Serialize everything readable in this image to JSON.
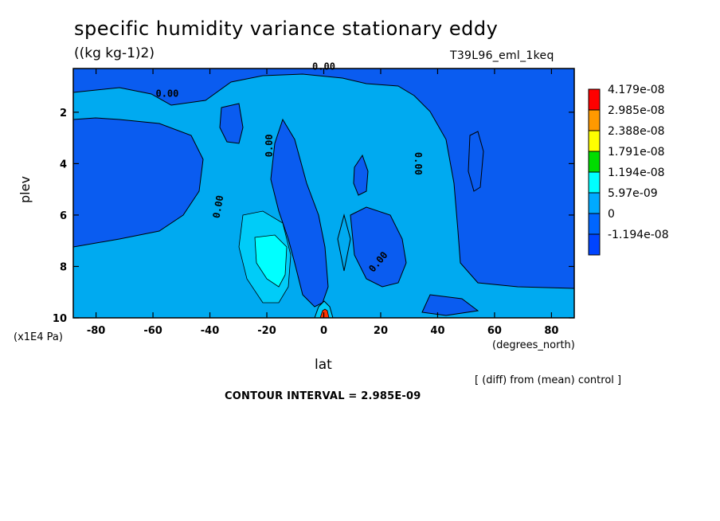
{
  "chart_data": {
    "type": "contour",
    "title": "specific humidity variance stationary eddy",
    "subtitle": "((kg kg-1)2)",
    "run_label": "T39L96_eml_1keq",
    "xlabel": "lat",
    "x_units": "(degrees_north)",
    "ylabel": "plev",
    "y_units": "(x1E4 Pa)",
    "xlim": [
      -88,
      88
    ],
    "ylim": [
      10,
      0.3
    ],
    "x_ticks": [
      -80,
      -60,
      -40,
      -20,
      0,
      20,
      40,
      60,
      80
    ],
    "y_ticks": [
      2,
      4,
      6,
      8,
      10
    ],
    "note": "[ (diff) from (mean) control ]",
    "contour_interval": "CONTOUR INTERVAL = 2.985E-09",
    "contour_labels": [
      "0.00",
      "0.00",
      "0.00",
      "0.00",
      "0.00",
      "0.00"
    ],
    "colorbar": {
      "levels": [
        "4.179e-08",
        "2.985e-08",
        "2.388e-08",
        "1.791e-08",
        "1.194e-08",
        "5.97e-09",
        "0",
        "-1.194e-08"
      ],
      "colors": [
        "#ff0000",
        "#ff9900",
        "#ffff00",
        "#00dd00",
        "#00ffff",
        "#00aaff",
        "#0066ff",
        "#0044ff"
      ]
    },
    "field_colors": {
      "negative": "#0a5cf0",
      "near_zero": "#00aaf0",
      "positive_low": "#00e0ff",
      "positive_mid": "#00ffff"
    }
  }
}
